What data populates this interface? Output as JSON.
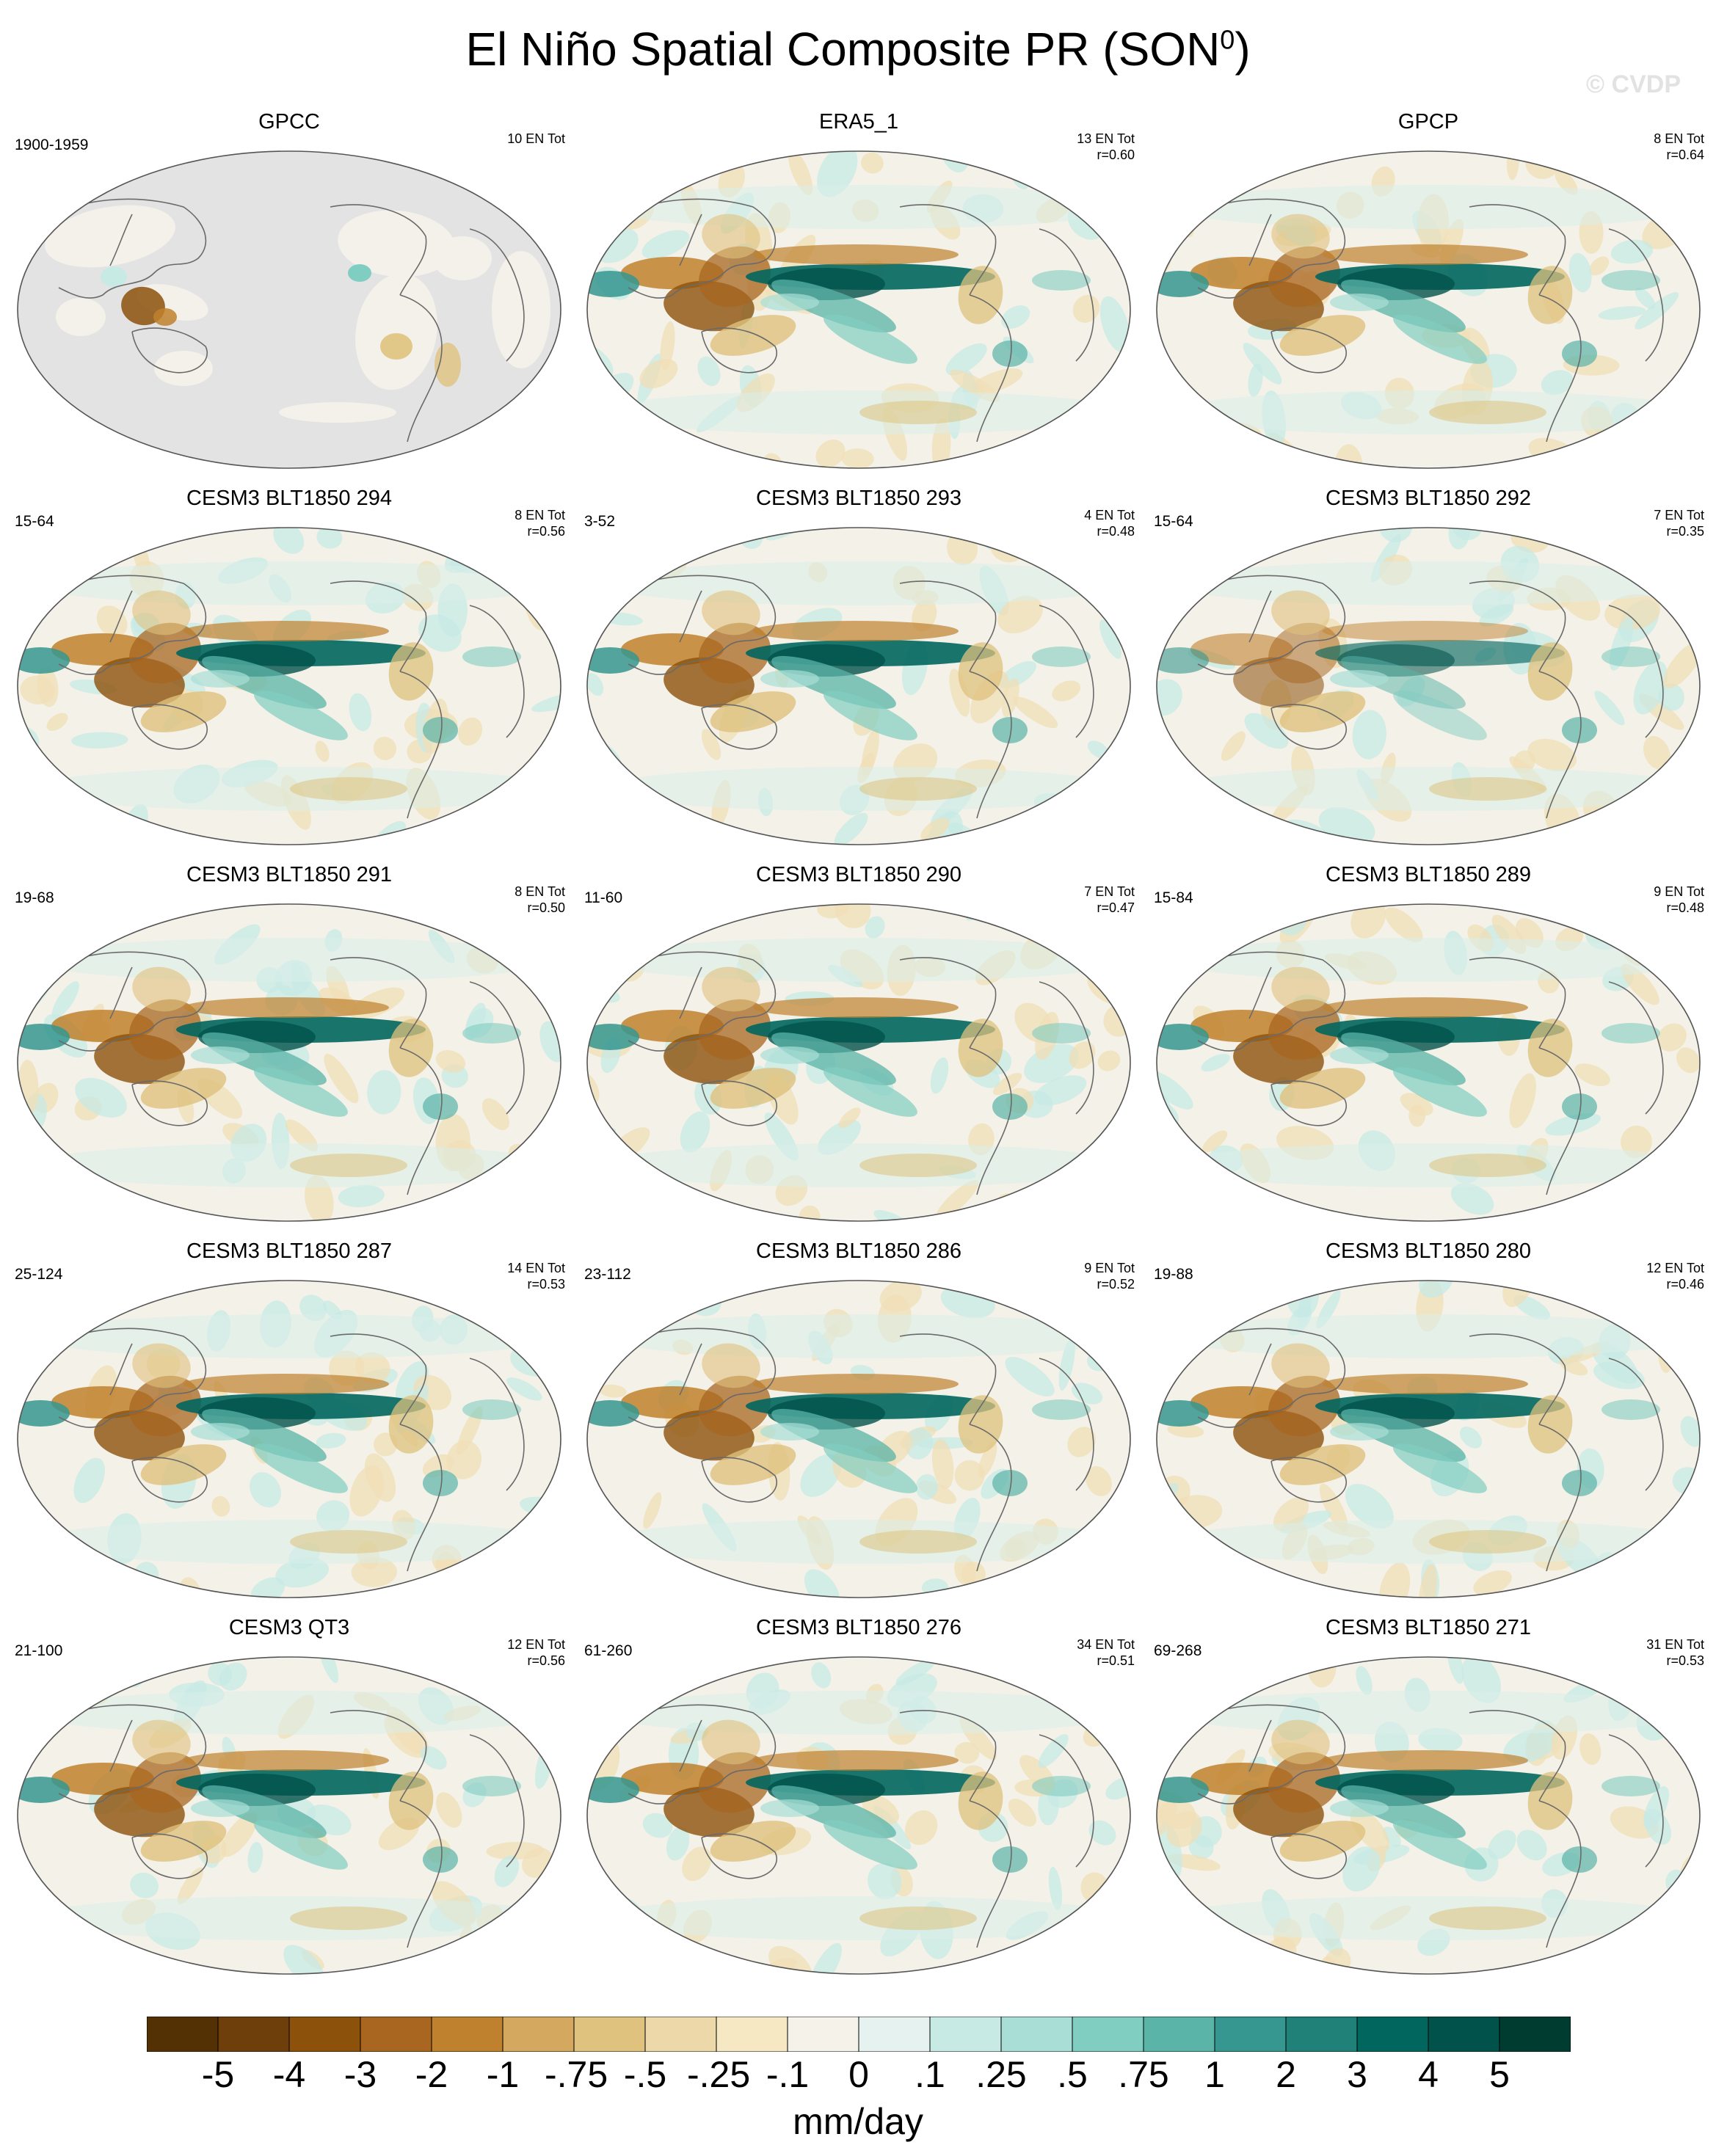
{
  "figure": {
    "title_main": "El Niño Spatial Composite PR (SON",
    "title_sup": "0",
    "title_close": ")",
    "watermark": "© CVDP"
  },
  "panels": [
    {
      "title": "GPCC",
      "years": "1900-1959",
      "count": "10 EN Tot",
      "corr": "",
      "style": "obs_land"
    },
    {
      "title": "ERA5_1",
      "years": "",
      "count": "13 EN Tot",
      "corr": "r=0.60",
      "style": "obs"
    },
    {
      "title": "GPCP",
      "years": "",
      "count": "8 EN Tot",
      "corr": "r=0.64",
      "style": "obs"
    },
    {
      "title": "CESM3 BLT1850 294",
      "years": "15-64",
      "count": "8 EN Tot",
      "corr": "r=0.56",
      "style": "model"
    },
    {
      "title": "CESM3 BLT1850 293",
      "years": "3-52",
      "count": "4 EN Tot",
      "corr": "r=0.48",
      "style": "model"
    },
    {
      "title": "CESM3 BLT1850 292",
      "years": "15-64",
      "count": "7 EN Tot",
      "corr": "r=0.35",
      "style": "model_weak"
    },
    {
      "title": "CESM3 BLT1850 291",
      "years": "19-68",
      "count": "8 EN Tot",
      "corr": "r=0.50",
      "style": "model"
    },
    {
      "title": "CESM3 BLT1850 290",
      "years": "11-60",
      "count": "7 EN Tot",
      "corr": "r=0.47",
      "style": "model"
    },
    {
      "title": "CESM3 BLT1850 289",
      "years": "15-84",
      "count": "9 EN Tot",
      "corr": "r=0.48",
      "style": "model"
    },
    {
      "title": "CESM3 BLT1850 287",
      "years": "25-124",
      "count": "14 EN Tot",
      "corr": "r=0.53",
      "style": "model"
    },
    {
      "title": "CESM3 BLT1850 286",
      "years": "23-112",
      "count": "9 EN Tot",
      "corr": "r=0.52",
      "style": "model"
    },
    {
      "title": "CESM3 BLT1850 280",
      "years": "19-88",
      "count": "12 EN Tot",
      "corr": "r=0.46",
      "style": "model"
    },
    {
      "title": "CESM3 QT3",
      "years": "21-100",
      "count": "12 EN Tot",
      "corr": "r=0.56",
      "style": "model"
    },
    {
      "title": "CESM3 BLT1850 276",
      "years": "61-260",
      "count": "34 EN Tot",
      "corr": "r=0.51",
      "style": "model"
    },
    {
      "title": "CESM3 BLT1850 271",
      "years": "69-268",
      "count": "31 EN Tot",
      "corr": "r=0.53",
      "style": "model"
    }
  ],
  "colorbar": {
    "units": "mm/day",
    "labels": [
      "-5",
      "-4",
      "-3",
      "-2",
      "-1",
      "-.75",
      "-.5",
      "-.25",
      "-.1",
      "0",
      ".1",
      ".25",
      ".5",
      ".75",
      "1",
      "2",
      "3",
      "4",
      "5"
    ],
    "colors": [
      "#543005",
      "#6e3f0a",
      "#8c510a",
      "#a86620",
      "#bf812d",
      "#d4a85e",
      "#dfc27d",
      "#ecd8a8",
      "#f6e8c3",
      "#f5f2ea",
      "#e6f2f0",
      "#c7eae5",
      "#a8ded6",
      "#80cdc1",
      "#5ab4a8",
      "#35978f",
      "#1f8178",
      "#01665e",
      "#01524a",
      "#003c30"
    ]
  }
}
